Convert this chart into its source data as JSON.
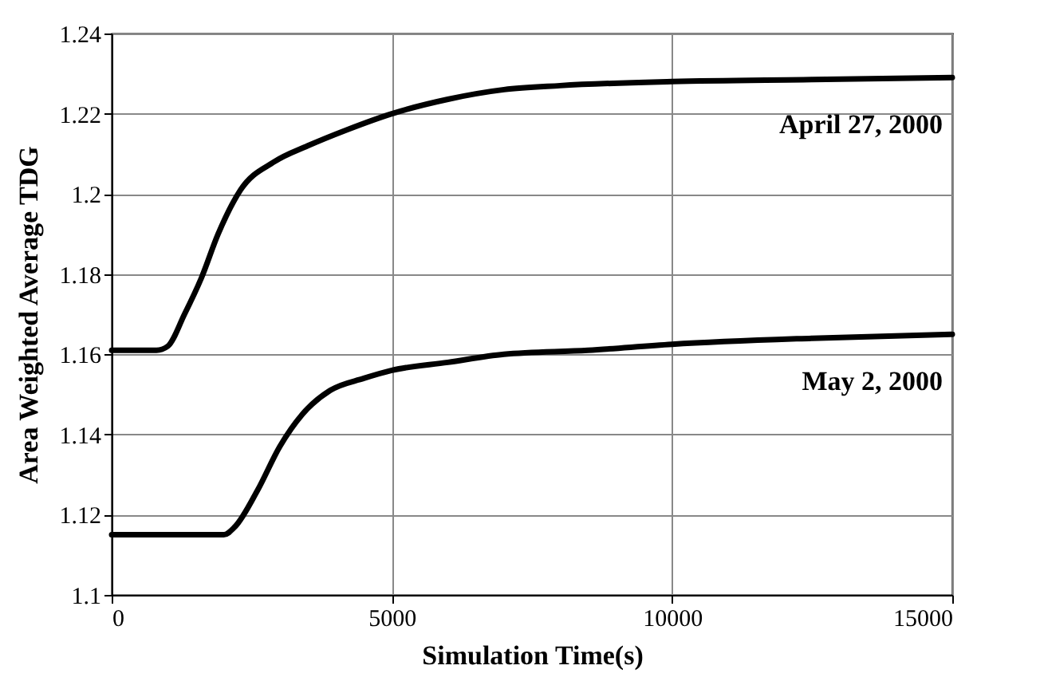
{
  "chart_data": {
    "type": "line",
    "xlabel": "Simulation Time(s)",
    "ylabel": "Area Weighted Average TDG",
    "xlim": [
      0,
      15000
    ],
    "xticks": [
      0,
      {
        "value": 5000,
        "label": "5000"
      },
      {
        "value": 10000,
        "label": "10000"
      },
      {
        "value": 15000,
        "label": "15000"
      }
    ],
    "ylim": [
      1.1,
      1.24
    ],
    "yticks": [
      {
        "value": 1.1,
        "label": "1.1"
      },
      1.12,
      1.14,
      1.16,
      1.18,
      {
        "value": 1.2,
        "label": "1.2"
      },
      1.22,
      1.24
    ],
    "grid": true,
    "legend": false,
    "line_style": "solid",
    "marker": "none",
    "series": [
      {
        "name": "April 27, 2000",
        "color": "#000000",
        "x": [
          0,
          800,
          1000,
          1300,
          1600,
          1900,
          2300,
          2900,
          3500,
          4200,
          5000,
          6000,
          7000,
          8000,
          10000,
          12500,
          15000
        ],
        "values": [
          1.161,
          1.161,
          1.162,
          1.17,
          1.179,
          1.19,
          1.201,
          1.208,
          1.212,
          1.216,
          1.22,
          1.2236,
          1.226,
          1.227,
          1.228,
          1.2285,
          1.229
        ]
      },
      {
        "name": "May  2, 2000",
        "color": "#000000",
        "x": [
          0,
          2000,
          2200,
          2600,
          3000,
          3400,
          3900,
          4500,
          5000,
          6000,
          7000,
          8500,
          10000,
          12500,
          15000
        ],
        "values": [
          1.115,
          1.115,
          1.117,
          1.126,
          1.137,
          1.145,
          1.151,
          1.154,
          1.156,
          1.158,
          1.16,
          1.161,
          1.1625,
          1.164,
          1.165
        ]
      }
    ]
  }
}
